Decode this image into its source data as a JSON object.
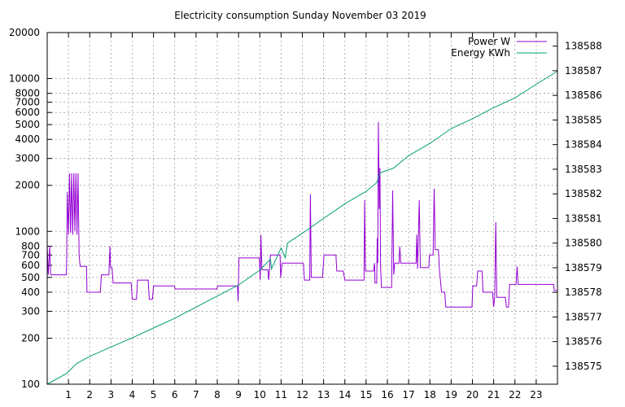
{
  "chart_data": {
    "type": "line",
    "title": "Electricity consumption Sunday November 03 2019",
    "xlabel": "",
    "ylabel": "",
    "x_range": [
      0,
      24
    ],
    "x_ticks": [
      1,
      2,
      3,
      4,
      5,
      6,
      7,
      8,
      9,
      10,
      11,
      12,
      13,
      14,
      15,
      16,
      17,
      18,
      19,
      20,
      21,
      22,
      23
    ],
    "y_left": {
      "scale": "log",
      "range": [
        100,
        20000
      ],
      "ticks": [
        100,
        200,
        300,
        400,
        500,
        600,
        700,
        800,
        1000,
        2000,
        3000,
        4000,
        5000,
        6000,
        7000,
        8000,
        10000,
        20000
      ]
    },
    "y_right": {
      "scale": "linear",
      "range": [
        138574.27,
        138588.55
      ],
      "ticks": [
        138575,
        138576,
        138577,
        138578,
        138579,
        138580,
        138581,
        138582,
        138583,
        138584,
        138585,
        138586,
        138587,
        138588
      ]
    },
    "grid": true,
    "legend_position": "top-right",
    "series": [
      {
        "name": "Power W",
        "color": "#9400d3",
        "axis": "left",
        "points": [
          [
            0.0,
            810
          ],
          [
            0.05,
            520
          ],
          [
            0.12,
            805
          ],
          [
            0.16,
            520
          ],
          [
            0.9,
            520
          ],
          [
            0.92,
            700
          ],
          [
            0.94,
            1800
          ],
          [
            1.0,
            950
          ],
          [
            1.05,
            2400
          ],
          [
            1.1,
            980
          ],
          [
            1.15,
            2400
          ],
          [
            1.2,
            950
          ],
          [
            1.25,
            2400
          ],
          [
            1.3,
            1000
          ],
          [
            1.35,
            2400
          ],
          [
            1.4,
            950
          ],
          [
            1.45,
            2400
          ],
          [
            1.5,
            700
          ],
          [
            1.55,
            590
          ],
          [
            1.85,
            590
          ],
          [
            1.87,
            400
          ],
          [
            2.5,
            400
          ],
          [
            2.55,
            520
          ],
          [
            2.9,
            520
          ],
          [
            2.95,
            800
          ],
          [
            2.98,
            580
          ],
          [
            3.05,
            580
          ],
          [
            3.1,
            460
          ],
          [
            3.95,
            460
          ],
          [
            4.0,
            360
          ],
          [
            4.2,
            360
          ],
          [
            4.25,
            480
          ],
          [
            4.75,
            480
          ],
          [
            4.8,
            360
          ],
          [
            4.95,
            360
          ],
          [
            5.0,
            440
          ],
          [
            5.98,
            440
          ],
          [
            6.02,
            420
          ],
          [
            7.98,
            420
          ],
          [
            8.02,
            440
          ],
          [
            8.95,
            440
          ],
          [
            8.98,
            350
          ],
          [
            9.02,
            670
          ],
          [
            9.98,
            670
          ],
          [
            10.02,
            480
          ],
          [
            10.05,
            950
          ],
          [
            10.1,
            560
          ],
          [
            10.38,
            560
          ],
          [
            10.42,
            480
          ],
          [
            10.5,
            700
          ],
          [
            10.95,
            700
          ],
          [
            10.98,
            500
          ],
          [
            11.05,
            620
          ],
          [
            12.05,
            620
          ],
          [
            12.1,
            480
          ],
          [
            12.35,
            480
          ],
          [
            12.38,
            1750
          ],
          [
            12.42,
            500
          ],
          [
            12.95,
            500
          ],
          [
            13.02,
            700
          ],
          [
            13.58,
            700
          ],
          [
            13.62,
            550
          ],
          [
            13.92,
            550
          ],
          [
            14.0,
            480
          ],
          [
            14.9,
            480
          ],
          [
            14.93,
            1600
          ],
          [
            14.97,
            550
          ],
          [
            15.35,
            550
          ],
          [
            15.4,
            620
          ],
          [
            15.42,
            460
          ],
          [
            15.5,
            460
          ],
          [
            15.52,
            900
          ],
          [
            15.55,
            620
          ],
          [
            15.58,
            5200
          ],
          [
            15.62,
            1400
          ],
          [
            15.65,
            2600
          ],
          [
            15.68,
            600
          ],
          [
            15.72,
            430
          ],
          [
            16.2,
            430
          ],
          [
            16.25,
            1850
          ],
          [
            16.3,
            520
          ],
          [
            16.35,
            620
          ],
          [
            16.55,
            620
          ],
          [
            16.58,
            800
          ],
          [
            16.63,
            620
          ],
          [
            17.35,
            620
          ],
          [
            17.38,
            950
          ],
          [
            17.42,
            570
          ],
          [
            17.5,
            1600
          ],
          [
            17.55,
            580
          ],
          [
            17.95,
            580
          ],
          [
            17.98,
            700
          ],
          [
            18.15,
            700
          ],
          [
            18.2,
            1900
          ],
          [
            18.25,
            760
          ],
          [
            18.4,
            760
          ],
          [
            18.45,
            560
          ],
          [
            18.55,
            400
          ],
          [
            18.7,
            400
          ],
          [
            18.75,
            320
          ],
          [
            19.98,
            320
          ],
          [
            20.02,
            440
          ],
          [
            20.2,
            440
          ],
          [
            20.25,
            550
          ],
          [
            20.45,
            550
          ],
          [
            20.5,
            400
          ],
          [
            20.95,
            400
          ],
          [
            21.0,
            320
          ],
          [
            21.05,
            370
          ],
          [
            21.1,
            1150
          ],
          [
            21.15,
            370
          ],
          [
            21.55,
            370
          ],
          [
            21.6,
            320
          ],
          [
            21.7,
            320
          ],
          [
            21.75,
            450
          ],
          [
            22.05,
            450
          ],
          [
            22.1,
            590
          ],
          [
            22.15,
            450
          ],
          [
            23.82,
            450
          ],
          [
            23.85,
            410
          ],
          [
            24.0,
            410
          ]
        ]
      },
      {
        "name": "Energy KWh",
        "color": "#009e73",
        "axis": "right",
        "points": [
          [
            0.0,
            138574.27
          ],
          [
            0.9,
            138574.7
          ],
          [
            1.4,
            138575.12
          ],
          [
            2.0,
            138575.4
          ],
          [
            3.0,
            138575.78
          ],
          [
            4.0,
            138576.15
          ],
          [
            5.0,
            138576.55
          ],
          [
            6.0,
            138576.95
          ],
          [
            7.0,
            138577.4
          ],
          [
            8.0,
            138577.85
          ],
          [
            9.0,
            138578.3
          ],
          [
            10.0,
            138578.9
          ],
          [
            10.5,
            138579.35
          ],
          [
            10.55,
            138578.95
          ],
          [
            11.0,
            138579.8
          ],
          [
            11.2,
            138579.4
          ],
          [
            11.3,
            138580.0
          ],
          [
            12.0,
            138580.4
          ],
          [
            13.0,
            138581.0
          ],
          [
            14.0,
            138581.6
          ],
          [
            15.0,
            138582.1
          ],
          [
            15.5,
            138582.45
          ],
          [
            15.65,
            138582.85
          ],
          [
            16.3,
            138583.05
          ],
          [
            17.0,
            138583.55
          ],
          [
            18.0,
            138584.05
          ],
          [
            19.0,
            138584.65
          ],
          [
            20.0,
            138585.05
          ],
          [
            21.0,
            138585.5
          ],
          [
            22.0,
            138585.9
          ],
          [
            23.0,
            138586.45
          ],
          [
            24.0,
            138586.98
          ]
        ]
      }
    ]
  }
}
